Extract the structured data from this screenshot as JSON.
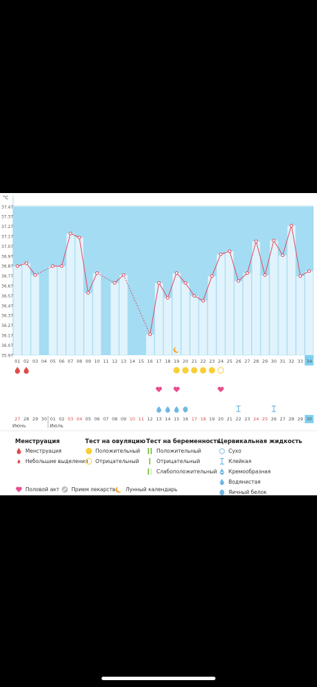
{
  "chart_data": {
    "type": "bar+line",
    "unit_label": "°C",
    "y_ticks": [
      "37.47",
      "37.37",
      "37.27",
      "37.17",
      "37.07",
      "36.97",
      "36.87",
      "36.77",
      "36.67",
      "36.57",
      "36.47",
      "36.37",
      "36.27",
      "36.17",
      "36.07",
      "35.97"
    ],
    "ylim": [
      35.97,
      37.47
    ],
    "cycle_days": [
      "01",
      "02",
      "03",
      "04",
      "05",
      "06",
      "07",
      "08",
      "09",
      "10",
      "11",
      "12",
      "13",
      "14",
      "15",
      "16",
      "17",
      "18",
      "19",
      "20",
      "21",
      "22",
      "23",
      "24",
      "25",
      "26",
      "27",
      "28",
      "29",
      "30",
      "31",
      "32",
      "33",
      "34"
    ],
    "temperatures": [
      36.87,
      36.9,
      36.78,
      null,
      36.87,
      36.87,
      37.2,
      37.16,
      36.6,
      36.8,
      null,
      36.7,
      36.78,
      null,
      null,
      36.18,
      36.7,
      36.55,
      36.8,
      36.7,
      36.57,
      36.52,
      36.77,
      36.99,
      37.02,
      36.72,
      36.8,
      37.12,
      36.78,
      37.13,
      36.98,
      37.28,
      36.77,
      36.82
    ],
    "today_index": 33,
    "menstruation_days": [
      0,
      1
    ],
    "ovulation_test_positive_days": [
      18,
      19,
      20,
      21,
      22
    ],
    "ovulation_test_negative_days": [
      23
    ],
    "intercourse_days": [
      16,
      18,
      23
    ],
    "cervical_fluid": [
      {
        "day": 16,
        "type": "watery"
      },
      {
        "day": 17,
        "type": "watery"
      },
      {
        "day": 18,
        "type": "watery"
      },
      {
        "day": 19,
        "type": "egg-white"
      },
      {
        "day": 25,
        "type": "sticky"
      },
      {
        "day": 29,
        "type": "sticky"
      }
    ],
    "lunar_day": 18,
    "dates": [
      "27",
      "28",
      "29",
      "30",
      "01",
      "02",
      "03",
      "04",
      "05",
      "06",
      "07",
      "08",
      "09",
      "10",
      "11",
      "12",
      "13",
      "14",
      "15",
      "16",
      "17",
      "18",
      "19",
      "20",
      "21",
      "22",
      "23",
      "24",
      "25",
      "26",
      "27",
      "28",
      "29",
      "30"
    ],
    "red_date_indices": [
      0,
      6,
      7,
      13,
      14,
      20,
      21,
      27,
      28
    ],
    "months": [
      {
        "label": "Июнь",
        "start": 0
      },
      {
        "label": "Июль",
        "start": 4
      }
    ]
  },
  "colors": {
    "chart_bg": "#a3dcf3",
    "bar_fill": "#e1f3fc",
    "bar_stroke": "#b7e1f3",
    "line": "#e0485f",
    "today_bg": "#7fd0ef",
    "red": "#e04a4a",
    "yellow": "#f8cf36",
    "pink": "#e94f8f",
    "drop_blue": "#6fb8e2",
    "green": "#6cbb2a",
    "moon": "#f5a623"
  },
  "legend": {
    "menstruation": {
      "title": "Менструация",
      "items": [
        "Менструация",
        "Небольшие выделения"
      ]
    },
    "ovulation": {
      "title": "Тест на овуляцию",
      "items": [
        "Положительный",
        "Отрицательный"
      ]
    },
    "pregnancy": {
      "title": "Тест на беременность",
      "items": [
        "Положительный",
        "Отрицательный",
        "Слабоположительный"
      ]
    },
    "cervical": {
      "title": "Цервикальная жидкость",
      "items": [
        "Сухо",
        "Клейкая",
        "Кремообразная",
        "Водянистая",
        "Яичный белок"
      ]
    },
    "bottom": {
      "intercourse": "Половой акт",
      "medication": "Прием лекарств",
      "lunar": "Лунный календарь"
    }
  }
}
